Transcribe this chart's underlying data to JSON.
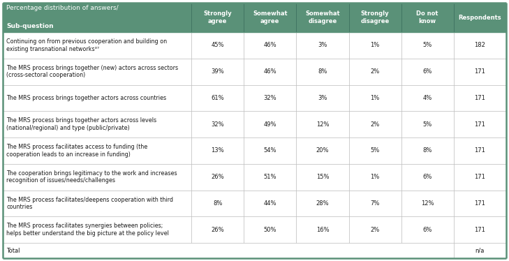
{
  "header_bg": "#5a9178",
  "header_text_color": "#ffffff",
  "border_color": "#bbbbbb",
  "outer_border_color": "#5a9178",
  "header_line1": "Percentage distribution of answers/",
  "header_line2": "Sub-question",
  "columns": [
    "Strongly\nagree",
    "Somewhat\nagree",
    "Somewhat\ndisagree",
    "Strongly\ndisagree",
    "Do not\nknow",
    "Respondents"
  ],
  "rows": [
    {
      "label": "Continuing on from previous cooperation and building on\nexisting transnational networks³⁷",
      "values": [
        "45%",
        "46%",
        "3%",
        "1%",
        "5%",
        "182"
      ]
    },
    {
      "label": "The MRS process brings together (new) actors across sectors\n(cross-sectoral cooperation)",
      "values": [
        "39%",
        "46%",
        "8%",
        "2%",
        "6%",
        "171"
      ]
    },
    {
      "label": "The MRS process brings together actors across countries",
      "values": [
        "61%",
        "32%",
        "3%",
        "1%",
        "4%",
        "171"
      ]
    },
    {
      "label": "The MRS process brings together actors across levels\n(national/regional) and type (public/private)",
      "values": [
        "32%",
        "49%",
        "12%",
        "2%",
        "5%",
        "171"
      ]
    },
    {
      "label": "The MRS process facilitates access to funding (the\ncooperation leads to an increase in funding)",
      "values": [
        "13%",
        "54%",
        "20%",
        "5%",
        "8%",
        "171"
      ]
    },
    {
      "label": "The cooperation brings legitimacy to the work and increases\nrecognition of issues/needs/challenges",
      "values": [
        "26%",
        "51%",
        "15%",
        "1%",
        "6%",
        "171"
      ]
    },
    {
      "label": "The MRS process facilitates/deepens cooperation with third\ncountries",
      "values": [
        "8%",
        "44%",
        "28%",
        "7%",
        "12%",
        "171"
      ]
    },
    {
      "label": "The MRS process facilitates synergies between policies;\nhelps better understand the big picture at the policy level",
      "values": [
        "26%",
        "50%",
        "16%",
        "2%",
        "6%",
        "171"
      ]
    }
  ],
  "total_label": "Total",
  "total_value": "n/a",
  "figsize": [
    7.29,
    3.74
  ],
  "dpi": 100
}
